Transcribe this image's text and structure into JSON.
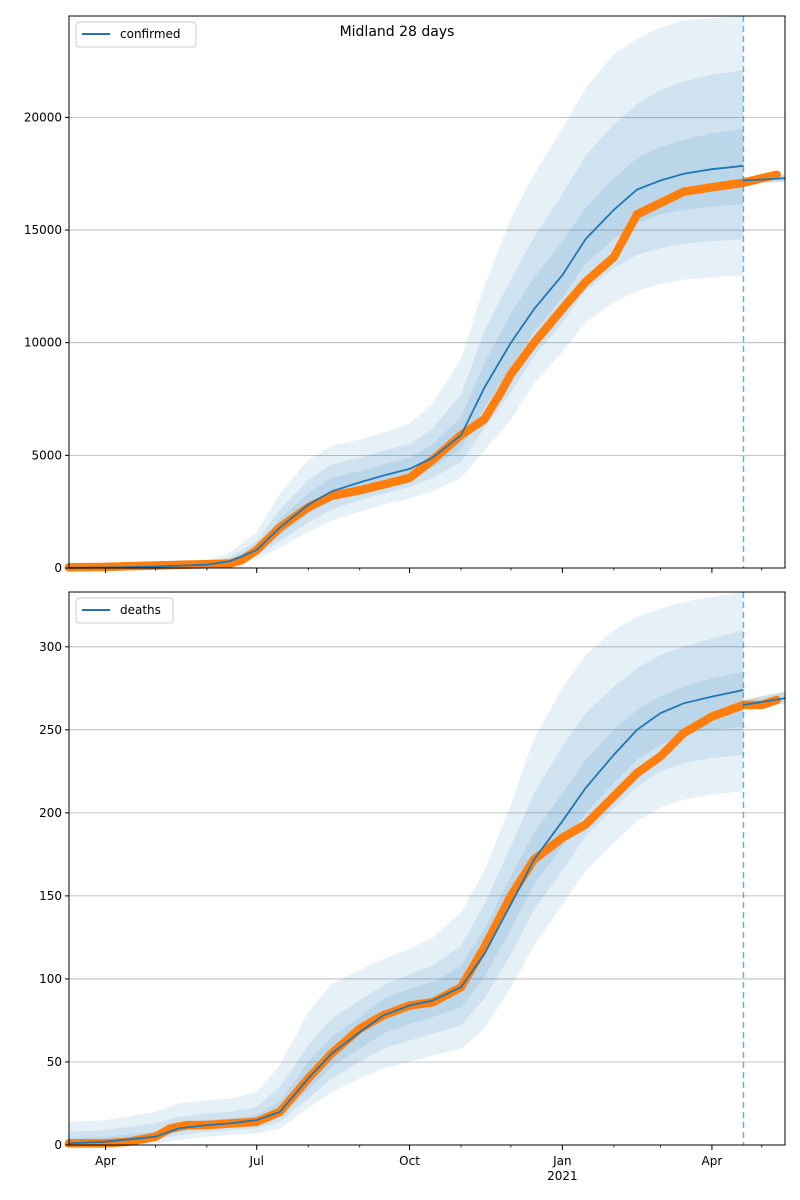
{
  "figure_title": "Midland 28 days",
  "colors": {
    "model_line": "#1f77b4",
    "band": "#1f77b4",
    "observed": "#ff7f0e",
    "grid": "#b0b0b0",
    "cutoff": "#1f77b4"
  },
  "x_axis": {
    "start": "2020-03-10",
    "end": "2021-05-15",
    "cutoff_date": "2021-04-20",
    "major_ticks": [
      {
        "date": "2020-04-01",
        "label": "Apr",
        "sublabel": ""
      },
      {
        "date": "2020-07-01",
        "label": "Jul",
        "sublabel": ""
      },
      {
        "date": "2020-10-01",
        "label": "Oct",
        "sublabel": ""
      },
      {
        "date": "2021-01-01",
        "label": "Jan",
        "sublabel": "2021"
      },
      {
        "date": "2021-04-01",
        "label": "Apr",
        "sublabel": ""
      }
    ]
  },
  "chart_data": [
    {
      "type": "line",
      "legend_label": "confirmed",
      "legend_position": "upper-left",
      "ylim": [
        0,
        24500
      ],
      "yticks": [
        0,
        5000,
        10000,
        15000,
        20000
      ],
      "grid": "horizontal",
      "model_median": {
        "x": [
          "2020-03-10",
          "2020-04-01",
          "2020-05-01",
          "2020-06-01",
          "2020-06-15",
          "2020-07-01",
          "2020-07-15",
          "2020-08-01",
          "2020-08-15",
          "2020-09-01",
          "2020-09-15",
          "2020-10-01",
          "2020-10-15",
          "2020-11-01",
          "2020-11-15",
          "2020-12-01",
          "2020-12-15",
          "2021-01-01",
          "2021-01-15",
          "2021-02-01",
          "2021-02-15",
          "2021-03-01",
          "2021-03-15",
          "2021-04-01",
          "2021-04-20"
        ],
        "y": [
          10,
          20,
          60,
          150,
          300,
          800,
          1800,
          2800,
          3400,
          3800,
          4100,
          4400,
          4900,
          5900,
          8000,
          10000,
          11500,
          13000,
          14600,
          15900,
          16800,
          17200,
          17500,
          17700,
          17850
        ]
      },
      "bands": [
        {
          "x": [
            "2020-03-10",
            "2020-04-01",
            "2020-05-01",
            "2020-06-01",
            "2020-06-15",
            "2020-07-01",
            "2020-07-15",
            "2020-08-01",
            "2020-08-15",
            "2020-09-01",
            "2020-09-15",
            "2020-10-01",
            "2020-10-15",
            "2020-11-01",
            "2020-11-15",
            "2020-12-01",
            "2020-12-15",
            "2021-01-01",
            "2021-01-15",
            "2021-02-01",
            "2021-02-15",
            "2021-03-01",
            "2021-03-15",
            "2021-04-01",
            "2021-04-20"
          ],
          "lower": [
            0,
            5,
            30,
            80,
            150,
            400,
            900,
            1600,
            2100,
            2500,
            2800,
            3100,
            3400,
            4000,
            5200,
            6600,
            8200,
            9600,
            10900,
            11800,
            12300,
            12600,
            12800,
            12900,
            13000
          ],
          "upper": [
            40,
            80,
            180,
            350,
            700,
            1600,
            3300,
            4800,
            5400,
            5700,
            6000,
            6400,
            7300,
            9300,
            12500,
            15500,
            17500,
            19500,
            21300,
            22800,
            23500,
            24000,
            24300,
            24400,
            24500
          ]
        },
        {
          "x": [
            "2020-03-10",
            "2020-04-01",
            "2020-05-01",
            "2020-06-01",
            "2020-06-15",
            "2020-07-01",
            "2020-07-15",
            "2020-08-01",
            "2020-08-15",
            "2020-09-01",
            "2020-09-15",
            "2020-10-01",
            "2020-10-15",
            "2020-11-01",
            "2020-11-15",
            "2020-12-01",
            "2020-12-15",
            "2021-01-01",
            "2021-01-15",
            "2021-02-01",
            "2021-02-15",
            "2021-03-01",
            "2021-03-15",
            "2021-04-01",
            "2021-04-20"
          ],
          "lower": [
            5,
            10,
            40,
            100,
            200,
            550,
            1200,
            2000,
            2600,
            3000,
            3300,
            3600,
            4000,
            4700,
            6200,
            7800,
            9400,
            10900,
            12300,
            13300,
            13900,
            14200,
            14400,
            14500,
            14600
          ],
          "upper": [
            25,
            45,
            110,
            230,
            480,
            1200,
            2600,
            3900,
            4600,
            4900,
            5200,
            5500,
            6200,
            7700,
            10500,
            12800,
            14700,
            16600,
            18300,
            19700,
            20600,
            21200,
            21600,
            21900,
            22100
          ]
        },
        {
          "x": [
            "2020-03-10",
            "2020-04-01",
            "2020-05-01",
            "2020-06-01",
            "2020-06-15",
            "2020-07-01",
            "2020-07-15",
            "2020-08-01",
            "2020-08-15",
            "2020-09-01",
            "2020-09-15",
            "2020-10-01",
            "2020-10-15",
            "2020-11-01",
            "2020-11-15",
            "2020-12-01",
            "2020-12-15",
            "2021-01-01",
            "2021-01-15",
            "2021-02-01",
            "2021-02-15",
            "2021-03-01",
            "2021-03-15",
            "2021-04-01",
            "2021-04-20"
          ],
          "lower": [
            8,
            15,
            50,
            120,
            250,
            650,
            1450,
            2400,
            3000,
            3400,
            3700,
            4000,
            4450,
            5300,
            7100,
            8900,
            10500,
            12000,
            13500,
            14600,
            15300,
            15700,
            15900,
            16050,
            16150
          ],
          "upper": [
            15,
            30,
            80,
            190,
            380,
            950,
            2200,
            3300,
            4000,
            4300,
            4600,
            4900,
            5500,
            6700,
            9100,
            11300,
            12900,
            14500,
            16000,
            17300,
            18200,
            18700,
            19000,
            19300,
            19500
          ]
        }
      ],
      "forecast": {
        "x": [
          "2021-04-20",
          "2021-05-15"
        ],
        "median": [
          17200,
          17300
        ],
        "lower": [
          17050,
          17150
        ],
        "upper": [
          17350,
          17450
        ]
      },
      "observed": {
        "x": [
          "2020-03-10",
          "2020-04-01",
          "2020-04-15",
          "2020-05-01",
          "2020-05-15",
          "2020-06-01",
          "2020-06-15",
          "2020-06-22",
          "2020-07-01",
          "2020-07-15",
          "2020-08-01",
          "2020-08-15",
          "2020-09-01",
          "2020-09-15",
          "2020-10-01",
          "2020-10-15",
          "2020-11-01",
          "2020-11-15",
          "2020-11-25",
          "2020-12-01",
          "2020-12-15",
          "2021-01-01",
          "2021-01-15",
          "2021-02-01",
          "2021-02-15",
          "2021-03-01",
          "2021-03-15",
          "2021-04-01",
          "2021-04-20",
          "2021-05-01",
          "2021-05-10"
        ],
        "y": [
          30,
          50,
          80,
          110,
          140,
          170,
          200,
          350,
          800,
          1800,
          2700,
          3200,
          3450,
          3700,
          4000,
          4800,
          5900,
          6600,
          7800,
          8600,
          10000,
          11500,
          12700,
          13800,
          15700,
          16200,
          16700,
          16900,
          17100,
          17300,
          17450
        ]
      }
    },
    {
      "type": "line",
      "legend_label": "deaths",
      "legend_position": "upper-left",
      "ylim": [
        0,
        333
      ],
      "yticks": [
        0,
        50,
        100,
        150,
        200,
        250,
        300
      ],
      "grid": "horizontal",
      "model_median": {
        "x": [
          "2020-03-10",
          "2020-04-01",
          "2020-05-01",
          "2020-05-15",
          "2020-06-01",
          "2020-06-15",
          "2020-07-01",
          "2020-07-15",
          "2020-08-01",
          "2020-08-15",
          "2020-09-01",
          "2020-09-15",
          "2020-10-01",
          "2020-10-15",
          "2020-11-01",
          "2020-11-15",
          "2020-12-01",
          "2020-12-15",
          "2021-01-01",
          "2021-01-15",
          "2021-02-01",
          "2021-02-15",
          "2021-03-01",
          "2021-03-15",
          "2021-04-01",
          "2021-04-20"
        ],
        "y": [
          1,
          2,
          5,
          10,
          12,
          13,
          15,
          20,
          40,
          55,
          68,
          78,
          84,
          87,
          95,
          115,
          145,
          172,
          195,
          215,
          235,
          250,
          260,
          266,
          270,
          274
        ]
      },
      "bands": [
        {
          "x": [
            "2020-03-10",
            "2020-04-01",
            "2020-05-01",
            "2020-05-15",
            "2020-06-01",
            "2020-06-15",
            "2020-07-01",
            "2020-07-15",
            "2020-08-01",
            "2020-08-15",
            "2020-09-01",
            "2020-09-15",
            "2020-10-01",
            "2020-10-15",
            "2020-11-01",
            "2020-11-15",
            "2020-12-01",
            "2020-12-15",
            "2021-01-01",
            "2021-01-15",
            "2021-02-01",
            "2021-02-15",
            "2021-03-01",
            "2021-03-15",
            "2021-04-01",
            "2021-04-20"
          ],
          "lower": [
            0,
            0,
            1,
            3,
            5,
            6,
            7,
            10,
            22,
            32,
            40,
            46,
            50,
            54,
            58,
            70,
            95,
            120,
            145,
            165,
            182,
            195,
            203,
            208,
            211,
            213
          ],
          "upper": [
            14,
            15,
            20,
            25,
            27,
            28,
            32,
            48,
            80,
            97,
            105,
            112,
            118,
            125,
            140,
            165,
            205,
            245,
            275,
            295,
            310,
            318,
            323,
            327,
            330,
            333
          ]
        },
        {
          "x": [
            "2020-03-10",
            "2020-04-01",
            "2020-05-01",
            "2020-05-15",
            "2020-06-01",
            "2020-06-15",
            "2020-07-01",
            "2020-07-15",
            "2020-08-01",
            "2020-08-15",
            "2020-09-01",
            "2020-09-15",
            "2020-10-01",
            "2020-10-15",
            "2020-11-01",
            "2020-11-15",
            "2020-12-01",
            "2020-12-15",
            "2021-01-01",
            "2021-01-15",
            "2021-02-01",
            "2021-02-15",
            "2021-03-01",
            "2021-03-15",
            "2021-04-01",
            "2021-04-20"
          ],
          "lower": [
            0,
            1,
            3,
            6,
            8,
            9,
            10,
            14,
            28,
            40,
            50,
            58,
            63,
            67,
            72,
            88,
            115,
            142,
            165,
            186,
            203,
            216,
            225,
            230,
            233,
            235
          ],
          "upper": [
            8,
            9,
            13,
            17,
            19,
            20,
            23,
            35,
            60,
            76,
            87,
            96,
            103,
            108,
            120,
            145,
            180,
            212,
            240,
            260,
            276,
            287,
            295,
            300,
            305,
            310
          ]
        },
        {
          "x": [
            "2020-03-10",
            "2020-04-01",
            "2020-05-01",
            "2020-05-15",
            "2020-06-01",
            "2020-06-15",
            "2020-07-01",
            "2020-07-15",
            "2020-08-01",
            "2020-08-15",
            "2020-09-01",
            "2020-09-15",
            "2020-10-01",
            "2020-10-15",
            "2020-11-01",
            "2020-11-15",
            "2020-12-01",
            "2020-12-15",
            "2021-01-01",
            "2021-01-15",
            "2021-02-01",
            "2021-02-15",
            "2021-03-01",
            "2021-03-15",
            "2021-04-01",
            "2021-04-20"
          ],
          "lower": [
            0,
            1,
            4,
            8,
            10,
            11,
            12,
            17,
            33,
            47,
            58,
            67,
            73,
            77,
            83,
            101,
            130,
            157,
            180,
            200,
            218,
            232,
            241,
            247,
            250,
            252
          ],
          "upper": [
            4,
            5,
            8,
            13,
            15,
            16,
            18,
            26,
            50,
            65,
            77,
            88,
            94,
            98,
            108,
            130,
            162,
            188,
            212,
            232,
            250,
            262,
            270,
            276,
            281,
            285
          ]
        }
      ],
      "forecast": {
        "x": [
          "2021-04-20",
          "2021-05-15"
        ],
        "median": [
          265,
          269
        ],
        "lower": [
          262,
          266
        ],
        "upper": [
          268,
          273
        ]
      },
      "observed": {
        "x": [
          "2020-03-10",
          "2020-04-01",
          "2020-04-15",
          "2020-05-01",
          "2020-05-10",
          "2020-05-20",
          "2020-06-01",
          "2020-06-15",
          "2020-07-01",
          "2020-07-15",
          "2020-08-01",
          "2020-08-15",
          "2020-09-01",
          "2020-09-15",
          "2020-10-01",
          "2020-10-15",
          "2020-11-01",
          "2020-11-15",
          "2020-12-01",
          "2020-12-15",
          "2021-01-01",
          "2021-01-15",
          "2021-02-01",
          "2021-02-15",
          "2021-03-01",
          "2021-03-15",
          "2021-04-01",
          "2021-04-20",
          "2021-05-01",
          "2021-05-10"
        ],
        "y": [
          1,
          1,
          2,
          5,
          10,
          12,
          12,
          13,
          14,
          20,
          40,
          55,
          70,
          78,
          84,
          86,
          95,
          119,
          150,
          172,
          185,
          193,
          210,
          224,
          234,
          248,
          258,
          265,
          265,
          268
        ]
      }
    }
  ]
}
